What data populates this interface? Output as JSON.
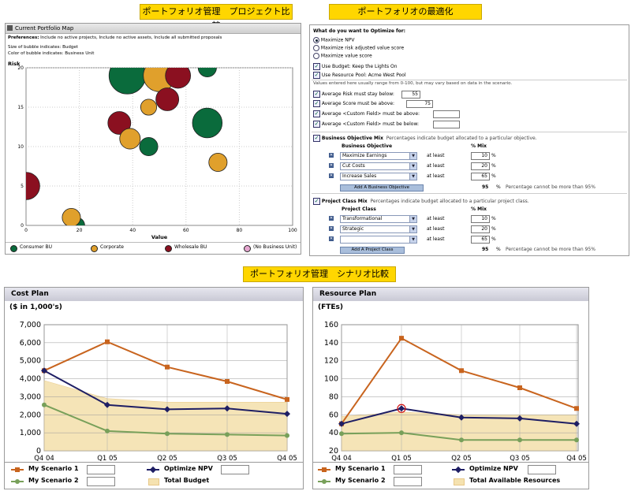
{
  "banners": {
    "top_left": "ポートフォリオ管理　プロジェクト比較",
    "top_right": "ポートフォリオの最適化",
    "middle": "ポートフォリオ管理　シナリオ比較"
  },
  "portfolio_map": {
    "title": "Current Portfolio Map",
    "preferences_label": "Preferences:",
    "preferences_text": "Include no active projects, Include no active assets, Include all submitted proposals",
    "size_note": "Size of bubble indicates: Budget",
    "color_note": "Color of bubble indicates: Business Unit",
    "legend": [
      {
        "label": "Consumer BU",
        "color": "#0a6b3c"
      },
      {
        "label": "Corporate",
        "color": "#e0a02c"
      },
      {
        "label": "Wholesale BU",
        "color": "#8b1020"
      },
      {
        "label": "(No Business Unit)",
        "color": "#e6a6d0"
      }
    ]
  },
  "chart_data": [
    {
      "type": "scatter",
      "ylabel": "Risk",
      "xlabel": "Value",
      "xlim": [
        0,
        100
      ],
      "ylim": [
        0,
        20
      ],
      "x_ticks": [
        "0",
        "20",
        "40",
        "60",
        "80",
        "100"
      ],
      "y_ticks": [
        "0",
        "5",
        "10",
        "15",
        "20"
      ],
      "bubbles": [
        {
          "x": 38,
          "y": 19,
          "r": 16,
          "color": "#0a6b3c"
        },
        {
          "x": 50,
          "y": 19,
          "r": 14,
          "color": "#e0a02c"
        },
        {
          "x": 57,
          "y": 19,
          "r": 11,
          "color": "#8b1020"
        },
        {
          "x": 68,
          "y": 20,
          "r": 8,
          "color": "#0a6b3c"
        },
        {
          "x": 53,
          "y": 16,
          "r": 10,
          "color": "#8b1020"
        },
        {
          "x": 46,
          "y": 15,
          "r": 7,
          "color": "#e0a02c"
        },
        {
          "x": 35,
          "y": 13,
          "r": 10,
          "color": "#8b1020"
        },
        {
          "x": 39,
          "y": 11,
          "r": 9,
          "color": "#e0a02c"
        },
        {
          "x": 46,
          "y": 10,
          "r": 8,
          "color": "#0a6b3c"
        },
        {
          "x": 68,
          "y": 13,
          "r": 13,
          "color": "#0a6b3c"
        },
        {
          "x": 72,
          "y": 8,
          "r": 8,
          "color": "#e0a02c"
        },
        {
          "x": 0,
          "y": 5,
          "r": 12,
          "color": "#8b1020"
        },
        {
          "x": 19,
          "y": 0,
          "r": 7,
          "color": "#0a6b3c"
        },
        {
          "x": 17,
          "y": 1,
          "r": 8,
          "color": "#e0a02c"
        }
      ]
    },
    {
      "type": "line",
      "title": "Cost Plan",
      "ylabel": "($ in 1,000's)",
      "categories": [
        "Q4 04",
        "Q1 05",
        "Q2 05",
        "Q3 05",
        "Q4 05"
      ],
      "ylim": [
        0,
        7000
      ],
      "y_ticks": [
        "0",
        "1,000",
        "2,000",
        "3,000",
        "4,000",
        "5,000",
        "6,000",
        "7,000"
      ],
      "series": [
        {
          "name": "My Scenario 1",
          "color": "#c8641e",
          "marker": "square",
          "values": [
            4450,
            6050,
            4650,
            3850,
            2850
          ]
        },
        {
          "name": "Optimize NPV",
          "color": "#1e1e64",
          "marker": "diamond",
          "values": [
            4450,
            2550,
            2300,
            2350,
            2050
          ]
        },
        {
          "name": "My Scenario 2",
          "color": "#78a05a",
          "marker": "circle",
          "values": [
            2550,
            1100,
            950,
            900,
            850
          ]
        },
        {
          "name": "Total Budget",
          "color": "#f5e2b0",
          "type": "area",
          "values": [
            3900,
            2900,
            2700,
            2700,
            2700
          ]
        }
      ]
    },
    {
      "type": "line",
      "title": "Resource Plan",
      "ylabel": "(FTEs)",
      "categories": [
        "Q4 04",
        "Q1 05",
        "Q2 05",
        "Q3 05",
        "Q4 05"
      ],
      "ylim": [
        20,
        160
      ],
      "y_ticks": [
        "20",
        "40",
        "60",
        "80",
        "100",
        "120",
        "140",
        "160"
      ],
      "series": [
        {
          "name": "My Scenario 1",
          "color": "#c8641e",
          "marker": "square",
          "values": [
            50,
            145,
            109,
            90,
            67
          ]
        },
        {
          "name": "Optimize NPV",
          "color": "#1e1e64",
          "marker": "diamond",
          "values": [
            50,
            67,
            57,
            56,
            50
          ]
        },
        {
          "name": "My Scenario 2",
          "color": "#78a05a",
          "marker": "circle",
          "values": [
            39,
            40,
            32,
            32,
            32
          ]
        },
        {
          "name": "Total Available Resources",
          "color": "#f5e2b0",
          "type": "area",
          "values": [
            58,
            63,
            60,
            60,
            60
          ]
        }
      ]
    }
  ],
  "optimize": {
    "question": "What do you want to Optimize for:",
    "options": [
      "Maximize NPV",
      "Maximize risk adjusted value score",
      "Maximize value score"
    ],
    "selected": 0,
    "use_budget": "Use Budget: Keep the Lights On",
    "use_pool": "Use Resource Pool: Acme West Pool",
    "note": "Values entered here usually range from 0-100, but may vary based on data in the scenario.",
    "constraints": [
      {
        "label": "Average Risk must stay below:",
        "value": "55"
      },
      {
        "label": "Average Score must be above:",
        "value": "75"
      },
      {
        "label": "Average <Custom Field> must be above:",
        "value": ""
      },
      {
        "label": "Average <Custom Field> must be below:",
        "value": ""
      }
    ],
    "bo_mix": {
      "title": "Business Objective Mix",
      "desc": "Percentages indicate budget allocated to a particular objective.",
      "col1": "Business Objective",
      "col2": "% Mix",
      "rows": [
        {
          "name": "Maximize Earnings",
          "qual": "at least",
          "value": "10"
        },
        {
          "name": "Cut Costs",
          "qual": "at least",
          "value": "20"
        },
        {
          "name": "Increase Sales",
          "qual": "at least",
          "value": "65"
        }
      ],
      "add_button": "Add A Business Objective",
      "total": "95",
      "total_note": "Percentage cannot be more than 95%"
    },
    "pc_mix": {
      "title": "Project Class Mix",
      "desc": "Percentages indicate budget allocated to a particular project class.",
      "col1": "Project Class",
      "col2": "% Mix",
      "rows": [
        {
          "name": "Transformational",
          "qual": "at least",
          "value": "10"
        },
        {
          "name": "Strategic",
          "qual": "at least",
          "value": "20"
        },
        {
          "name": "",
          "qual": "at least",
          "value": "65"
        }
      ],
      "add_button": "Add A Project Class",
      "total": "95",
      "total_note": "Percentage cannot be more than 95%"
    },
    "percent_sign": "%"
  }
}
